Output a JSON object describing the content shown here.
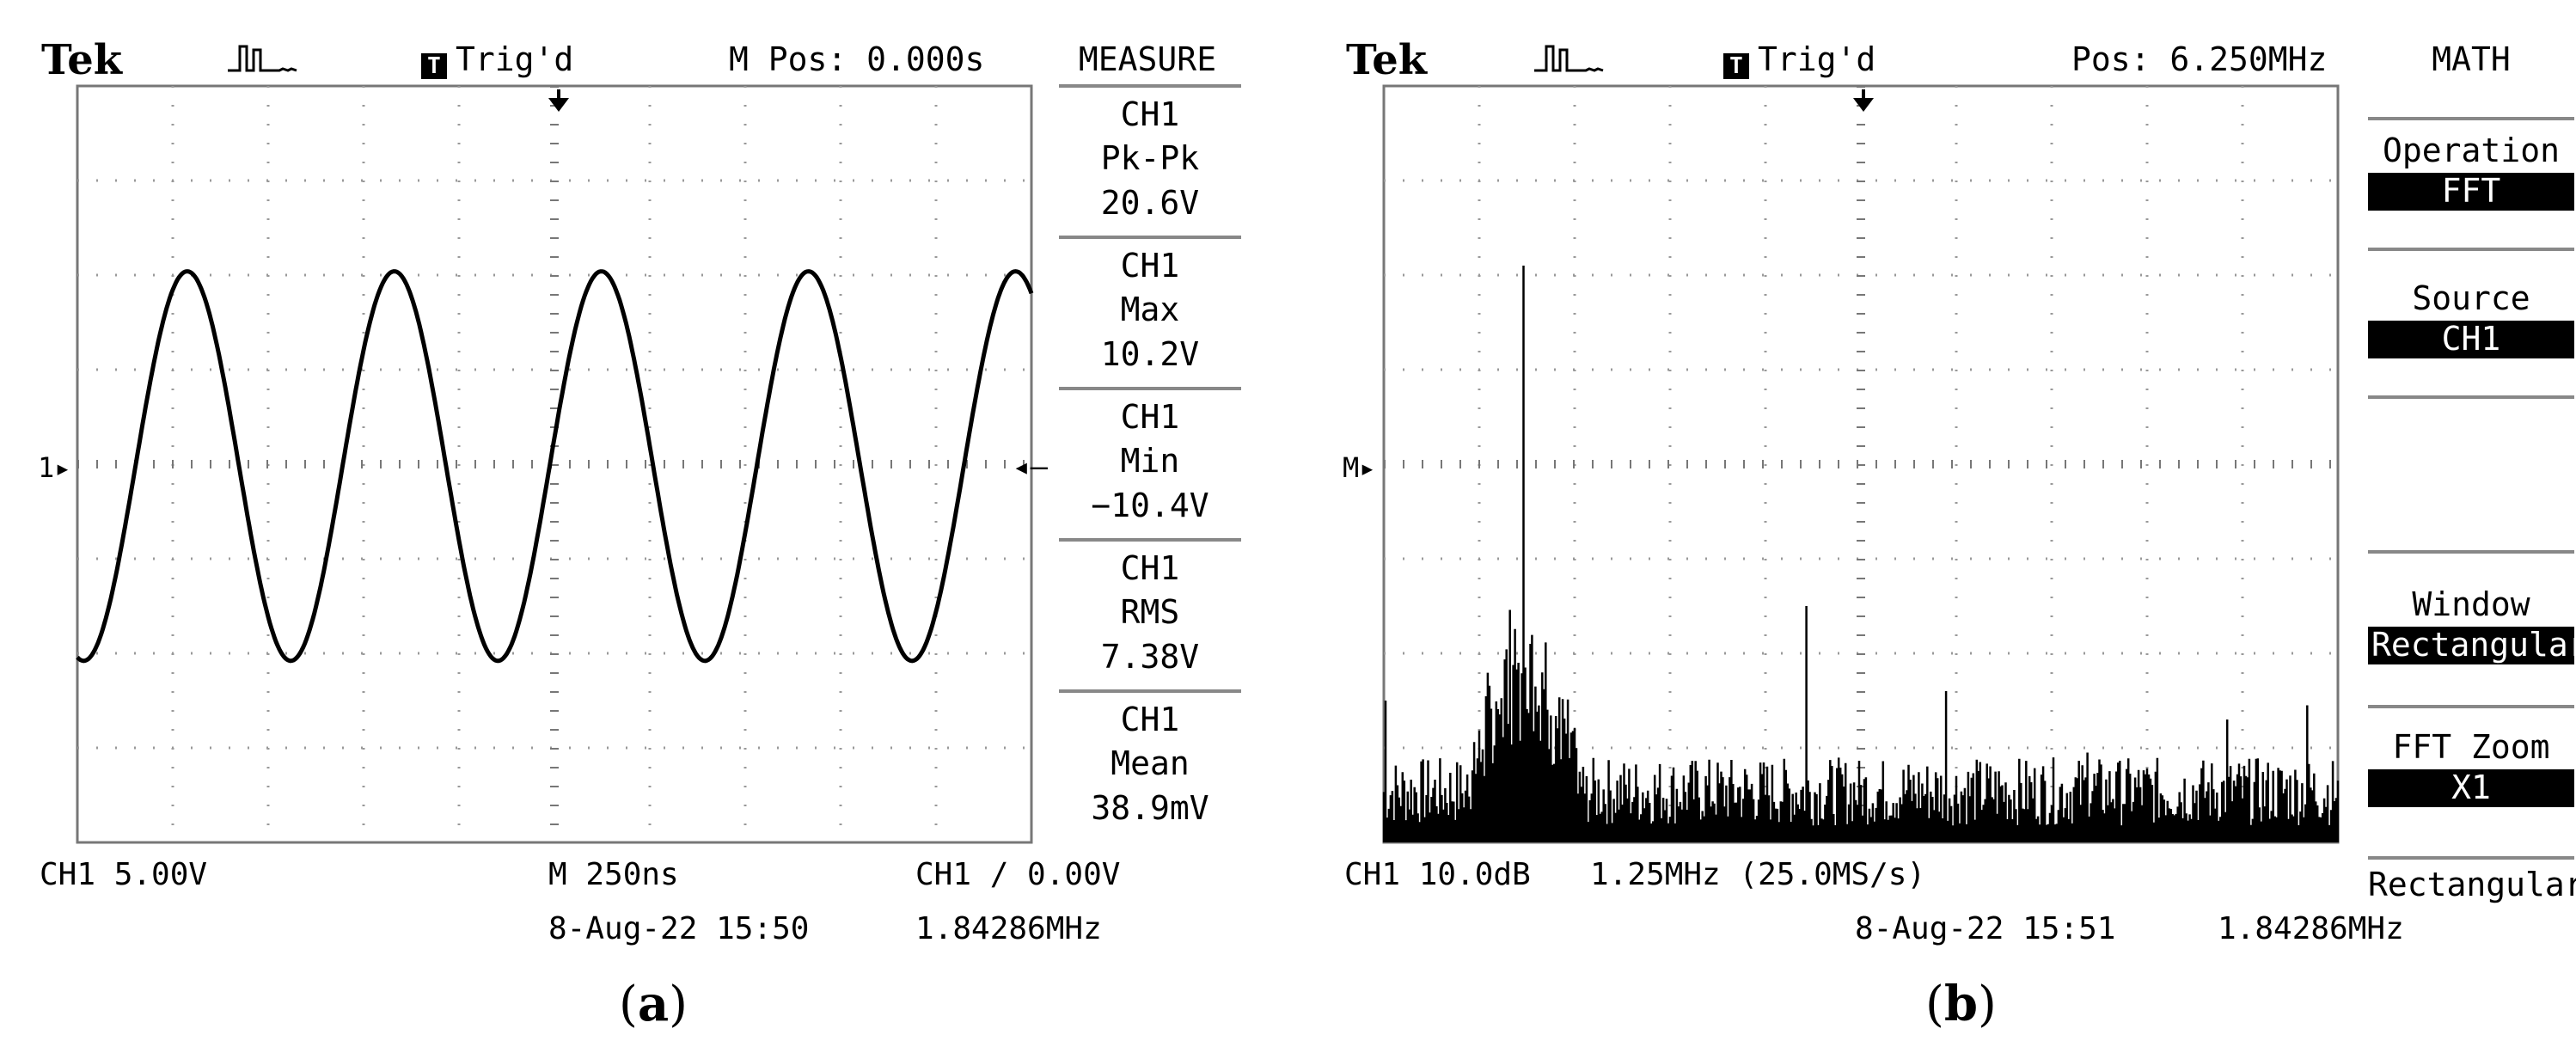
{
  "panel_a": {
    "brand": "Tek",
    "trigger_state": "Trig'd",
    "trigger_box_glyph": "T",
    "pos_label": "M Pos: 0.000s",
    "menu_title": "MEASURE",
    "measurements": [
      {
        "channel": "CH1",
        "name": "Pk-Pk",
        "value": "20.6V"
      },
      {
        "channel": "CH1",
        "name": "Max",
        "value": "10.2V"
      },
      {
        "channel": "CH1",
        "name": "Min",
        "value": "-10.4V"
      },
      {
        "channel": "CH1",
        "name": "RMS",
        "value": "7.38V"
      },
      {
        "channel": "CH1",
        "name": "Mean",
        "value": "38.9mV"
      }
    ],
    "ch_marker": "1",
    "footer": {
      "channel_scale": "CH1  5.00V",
      "timebase": "M 250ns",
      "trigger": "CH1 ∕ 0.00V",
      "date": "8-Aug-22 15:50",
      "frequency": "1.84286MHz"
    },
    "caption_letter": "a",
    "caption_open": "(",
    "caption_close": ")"
  },
  "panel_b": {
    "brand": "Tek",
    "trigger_state": "Trig'd",
    "trigger_box_glyph": "T",
    "pos_label": "Pos: 6.250MHz",
    "menu_title": "MATH",
    "menu": {
      "operation_label": "Operation",
      "operation_value": "FFT",
      "source_label": "Source",
      "source_value": "CH1",
      "window_label": "Window",
      "window_value": "Rectangular",
      "zoom_label": "FFT Zoom",
      "zoom_value": "X1",
      "bottom_label": "Rectangular"
    },
    "m_marker": "M",
    "footer": {
      "channel_scale": "CH1 10.0dB",
      "freq_div": "1.25MHz (25.0MS/s)",
      "date": "8-Aug-22 15:51",
      "frequency": "1.84286MHz"
    },
    "caption_letter": "b",
    "caption_open": "(",
    "caption_close": ")"
  },
  "chart_data": [
    {
      "type": "line",
      "title": "",
      "xlabel": "",
      "ylabel": "",
      "x_unit": "s",
      "y_unit": "V",
      "x_divisions": 10,
      "y_divisions": 8,
      "time_per_div": 2.5e-07,
      "volts_per_div": 5.0,
      "xlim": [
        0,
        2.5e-06
      ],
      "ylim": [
        -20,
        20
      ],
      "grid": true,
      "series": [
        {
          "frequency_hz": 1842860,
          "amplitude_v": 10.3,
          "offset_v": -0.1,
          "phase_at_start_deg": -101
        }
      ]
    },
    {
      "type": "line",
      "title": "",
      "xlabel": "",
      "ylabel": "",
      "x_unit": "MHz",
      "y_unit": "dB",
      "xlim": [
        0,
        12.5
      ],
      "x_per_div": 1.25,
      "db_per_div": 10.0,
      "x_divisions": 10,
      "y_divisions": 8,
      "grid": true,
      "noise_floor_div": 0.6,
      "peaks": [
        {
          "x": 1.84,
          "height_div": 6.1
        },
        {
          "x": 1.76,
          "height_div": 1.9
        },
        {
          "x": 1.92,
          "height_div": 2.1
        },
        {
          "x": 5.53,
          "height_div": 2.5
        },
        {
          "x": 7.37,
          "height_div": 1.6
        },
        {
          "x": 9.21,
          "height_div": 0.95
        },
        {
          "x": 9.6,
          "height_div": 0.75
        },
        {
          "x": 11.05,
          "height_div": 1.3
        },
        {
          "x": 12.1,
          "height_div": 1.45
        },
        {
          "x": 0.02,
          "height_div": 1.5
        }
      ]
    }
  ]
}
